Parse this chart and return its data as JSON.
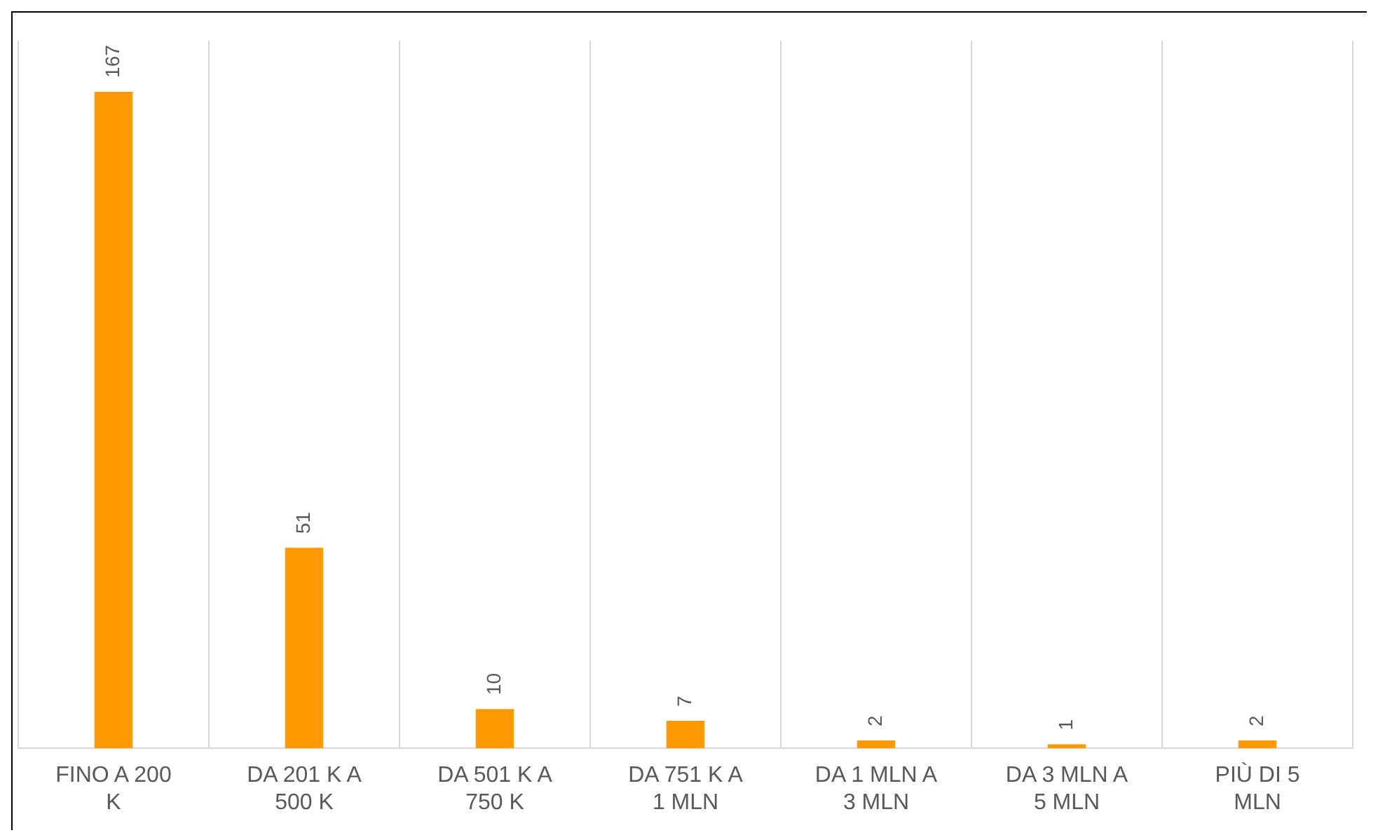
{
  "chart_data": {
    "type": "bar",
    "categories": [
      "FINO A 200 K",
      "DA 201 K A 500 K",
      "DA 501 K A 750 K",
      "DA 751 K A 1 MLN",
      "DA 1 MLN A 3 MLN",
      "DA 3 MLN A 5 MLN",
      "PIÙ DI 5 MLN"
    ],
    "values": [
      167,
      51,
      10,
      7,
      2,
      1,
      2
    ],
    "color": "#ff9900",
    "data_labels": true,
    "grid": "x",
    "legend": false
  }
}
